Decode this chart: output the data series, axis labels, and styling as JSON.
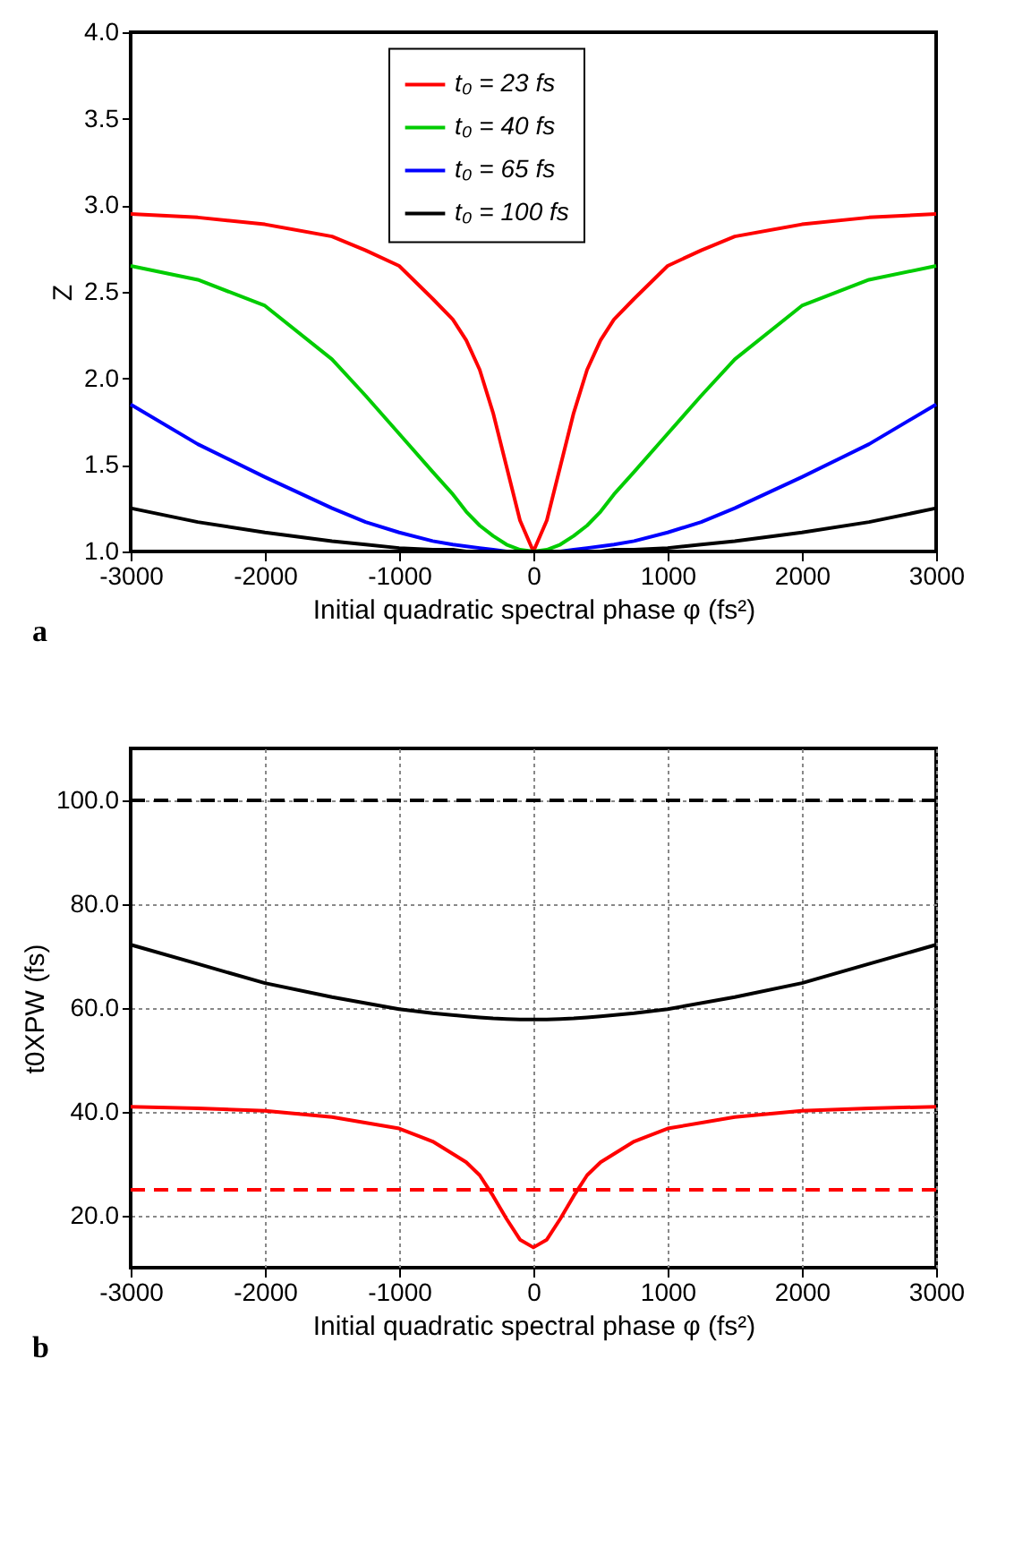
{
  "chart_data": [
    {
      "type": "line",
      "xlabel": "Initial quadratic spectral phase φ (fs²)",
      "ylabel": "Z",
      "annotations": [
        "a"
      ],
      "xlim": [
        -3000,
        3000
      ],
      "xticks": [
        -3000,
        -2000,
        -1000,
        0,
        1000,
        2000,
        3000
      ],
      "ylim": [
        1.0,
        4.0
      ],
      "yticks": [
        {
          "value": 1,
          "label": "1.0"
        },
        {
          "value": 1.5,
          "label": "1.5"
        },
        {
          "value": 2,
          "label": "2.0"
        },
        {
          "value": 2.5,
          "label": "2.5"
        },
        {
          "value": 3,
          "label": "3.0"
        },
        {
          "value": 3.5,
          "label": "3.5"
        },
        {
          "value": 4,
          "label": "4.0"
        }
      ],
      "grid": false,
      "legend": "top",
      "marker": "none",
      "line_style": "solid",
      "x": [
        -3000,
        -2500,
        -2000,
        -1500,
        -1250,
        -1000,
        -750,
        -600,
        -500,
        -400,
        -300,
        -200,
        -100,
        0,
        100,
        200,
        300,
        400,
        500,
        600,
        750,
        1000,
        1250,
        1500,
        2000,
        2500,
        3000
      ],
      "series": [
        {
          "name": "t₀ = 23 fs",
          "color": "#ff0000",
          "values": [
            2.95,
            2.93,
            2.89,
            2.82,
            2.74,
            2.65,
            2.46,
            2.34,
            2.22,
            2.05,
            1.8,
            1.49,
            1.18,
            1.0,
            1.18,
            1.49,
            1.8,
            2.05,
            2.22,
            2.34,
            2.46,
            2.65,
            2.74,
            2.82,
            2.89,
            2.93,
            2.95
          ]
        },
        {
          "name": "t₀ = 40 fs",
          "color": "#00cc00",
          "values": [
            2.65,
            2.57,
            2.42,
            2.11,
            1.9,
            1.68,
            1.46,
            1.33,
            1.23,
            1.15,
            1.09,
            1.04,
            1.01,
            1.0,
            1.01,
            1.04,
            1.09,
            1.15,
            1.23,
            1.33,
            1.46,
            1.68,
            1.9,
            2.11,
            2.42,
            2.57,
            2.65
          ]
        },
        {
          "name": "t₀ = 65 fs",
          "color": "#0000ff",
          "values": [
            1.85,
            1.62,
            1.43,
            1.25,
            1.17,
            1.11,
            1.06,
            1.04,
            1.03,
            1.02,
            1.01,
            1.0,
            1.0,
            1.0,
            1.0,
            1.0,
            1.01,
            1.02,
            1.03,
            1.04,
            1.06,
            1.11,
            1.17,
            1.25,
            1.43,
            1.62,
            1.85
          ]
        },
        {
          "name": "t₀ = 100 fs",
          "color": "#000000",
          "values": [
            1.25,
            1.17,
            1.11,
            1.06,
            1.04,
            1.02,
            1.01,
            1.01,
            1.0,
            1.0,
            1.0,
            1.0,
            1.0,
            1.0,
            1.0,
            1.0,
            1.0,
            1.0,
            1.0,
            1.01,
            1.01,
            1.02,
            1.04,
            1.06,
            1.11,
            1.17,
            1.25
          ]
        }
      ]
    },
    {
      "type": "line",
      "xlabel": "Initial quadratic spectral phase φ (fs²)",
      "ylabel": "t0XPW (fs)",
      "annotations": [
        "b"
      ],
      "xlim": [
        -3000,
        3000
      ],
      "xticks": [
        -3000,
        -2000,
        -1000,
        0,
        1000,
        2000,
        3000
      ],
      "ylim": [
        10,
        110
      ],
      "yticks": [
        {
          "value": 20,
          "label": "20.0"
        },
        {
          "value": 40,
          "label": "40.0"
        },
        {
          "value": 60,
          "label": "60.0"
        },
        {
          "value": 80,
          "label": "80.0"
        },
        {
          "value": 100,
          "label": "100.0"
        }
      ],
      "grid": true,
      "legend": "top",
      "marker": "none",
      "line_style": "solid",
      "x": [
        -3000,
        -2500,
        -2000,
        -1500,
        -1000,
        -750,
        -500,
        -400,
        -300,
        -200,
        -100,
        0,
        100,
        200,
        300,
        400,
        500,
        750,
        1000,
        1500,
        2000,
        2500,
        3000
      ],
      "series": [
        {
          "name": "t₀ = 23 fs",
          "color": "#ff0000",
          "values": [
            41.0,
            40.7,
            40.2,
            39.0,
            36.8,
            34.3,
            30.3,
            27.8,
            23.8,
            19.4,
            15.4,
            13.9,
            15.4,
            19.4,
            23.8,
            27.8,
            30.3,
            34.3,
            36.8,
            39.0,
            40.2,
            40.7,
            41.0
          ]
        },
        {
          "name": "t₀ = 100 fs",
          "color": "#000000",
          "values": [
            72.2,
            68.5,
            64.8,
            62.1,
            59.8,
            59.0,
            58.4,
            58.2,
            58.0,
            57.9,
            57.8,
            57.8,
            57.8,
            57.9,
            58.0,
            58.2,
            58.4,
            59.0,
            59.8,
            62.1,
            64.8,
            68.5,
            72.2
          ]
        }
      ],
      "ref_lines": [
        {
          "axis": "y",
          "value": 100,
          "color": "#000000",
          "line_style": "dashed"
        },
        {
          "axis": "y",
          "value": 25,
          "color": "#ff0000",
          "line_style": "dashed"
        }
      ]
    }
  ]
}
